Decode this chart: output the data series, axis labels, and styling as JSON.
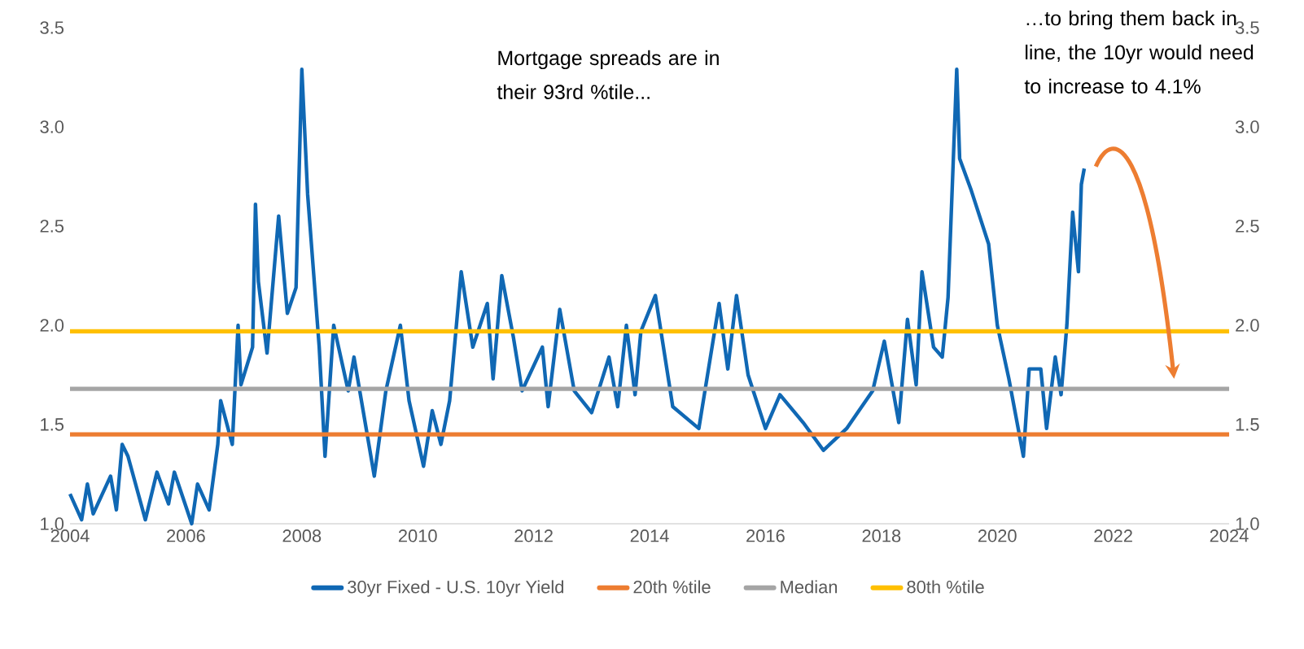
{
  "chart_data": {
    "type": "line",
    "xlim": [
      2004,
      2024
    ],
    "xticks": [
      2004,
      2006,
      2008,
      2010,
      2012,
      2014,
      2016,
      2018,
      2020,
      2022,
      2024
    ],
    "ylim": [
      1.0,
      3.5
    ],
    "yticks": [
      {
        "value": 1.0,
        "label": "1.0"
      },
      {
        "value": 1.5,
        "label": "1.5"
      },
      {
        "value": 2.0,
        "label": "2.0"
      },
      {
        "value": 2.5,
        "label": "2.5"
      },
      {
        "value": 3.0,
        "label": "3.0"
      },
      {
        "value": 3.5,
        "label": "3.5"
      }
    ],
    "y2lim": [
      1.0,
      3.5
    ],
    "y2ticks": [
      {
        "value": 1.0,
        "label": "1.0"
      },
      {
        "value": 1.5,
        "label": "1.5"
      },
      {
        "value": 2.0,
        "label": "2.0"
      },
      {
        "value": 2.5,
        "label": "2.5"
      },
      {
        "value": 3.0,
        "label": "3.0"
      },
      {
        "value": 3.5,
        "label": "3.5"
      }
    ],
    "legend": "bottom",
    "annotations": [
      "Mortgage spreads are in their 93rd %tile...",
      "…to bring them back in line, the 10yr would need to increase to 4.1%"
    ],
    "series": [
      {
        "name": "30yr Fixed - U.S. 10yr Yield",
        "color": "#1068b4",
        "x": [
          2004.0,
          2004.2,
          2004.3,
          2004.4,
          2004.7,
          2004.8,
          2004.9,
          2005.0,
          2005.3,
          2005.5,
          2005.7,
          2005.8,
          2006.1,
          2006.2,
          2006.4,
          2006.55,
          2006.6,
          2006.8,
          2006.9,
          2006.95,
          2007.15,
          2007.2,
          2007.25,
          2007.4,
          2007.6,
          2007.75,
          2007.9,
          2008.0,
          2008.1,
          2008.3,
          2008.4,
          2008.55,
          2008.8,
          2008.9,
          2009.25,
          2009.45,
          2009.7,
          2009.85,
          2010.1,
          2010.25,
          2010.4,
          2010.55,
          2010.75,
          2010.95,
          2011.2,
          2011.3,
          2011.45,
          2011.65,
          2011.8,
          2012.15,
          2012.25,
          2012.45,
          2012.7,
          2013.0,
          2013.3,
          2013.45,
          2013.6,
          2013.75,
          2013.85,
          2014.1,
          2014.4,
          2014.85,
          2015.2,
          2015.35,
          2015.5,
          2015.7,
          2016.0,
          2016.25,
          2016.65,
          2017.0,
          2017.4,
          2017.85,
          2018.05,
          2018.3,
          2018.45,
          2018.6,
          2018.7,
          2018.9,
          2019.05,
          2019.15,
          2019.3,
          2019.35,
          2019.55,
          2019.85,
          2020.0,
          2020.2,
          2020.45,
          2020.55,
          2020.75,
          2020.85,
          2021.0,
          2021.1,
          2021.2,
          2021.3,
          2021.4,
          2021.45,
          2021.5
        ],
        "values": [
          1.15,
          1.02,
          1.2,
          1.05,
          1.24,
          1.07,
          1.4,
          1.34,
          1.02,
          1.26,
          1.1,
          1.26,
          1.0,
          1.2,
          1.07,
          1.4,
          1.62,
          1.4,
          2.0,
          1.7,
          1.89,
          2.61,
          2.22,
          1.86,
          2.55,
          2.06,
          2.19,
          3.29,
          2.66,
          1.89,
          1.34,
          2.0,
          1.67,
          1.84,
          1.24,
          1.67,
          2.0,
          1.62,
          1.29,
          1.57,
          1.4,
          1.62,
          2.27,
          1.89,
          2.11,
          1.73,
          2.25,
          1.94,
          1.67,
          1.89,
          1.59,
          2.08,
          1.67,
          1.56,
          1.84,
          1.59,
          2.0,
          1.65,
          1.97,
          2.15,
          1.59,
          1.48,
          2.11,
          1.78,
          2.15,
          1.75,
          1.48,
          1.65,
          1.51,
          1.37,
          1.48,
          1.67,
          1.92,
          1.51,
          2.03,
          1.7,
          2.27,
          1.89,
          1.84,
          2.14,
          3.29,
          2.84,
          2.68,
          2.41,
          2.0,
          1.73,
          1.34,
          1.78,
          1.78,
          1.48,
          1.84,
          1.65,
          2.0,
          2.57,
          2.27,
          2.71,
          2.79
        ]
      },
      {
        "name": "20th %tile",
        "color": "#ed7d31",
        "x": [
          2004,
          2024
        ],
        "values": [
          1.45,
          1.45
        ]
      },
      {
        "name": "Median",
        "color": "#a5a5a5",
        "x": [
          2004,
          2024
        ],
        "values": [
          1.68,
          1.68
        ]
      },
      {
        "name": "80th %tile",
        "color": "#ffc000",
        "x": [
          2004,
          2024
        ],
        "values": [
          1.97,
          1.97
        ]
      }
    ]
  }
}
